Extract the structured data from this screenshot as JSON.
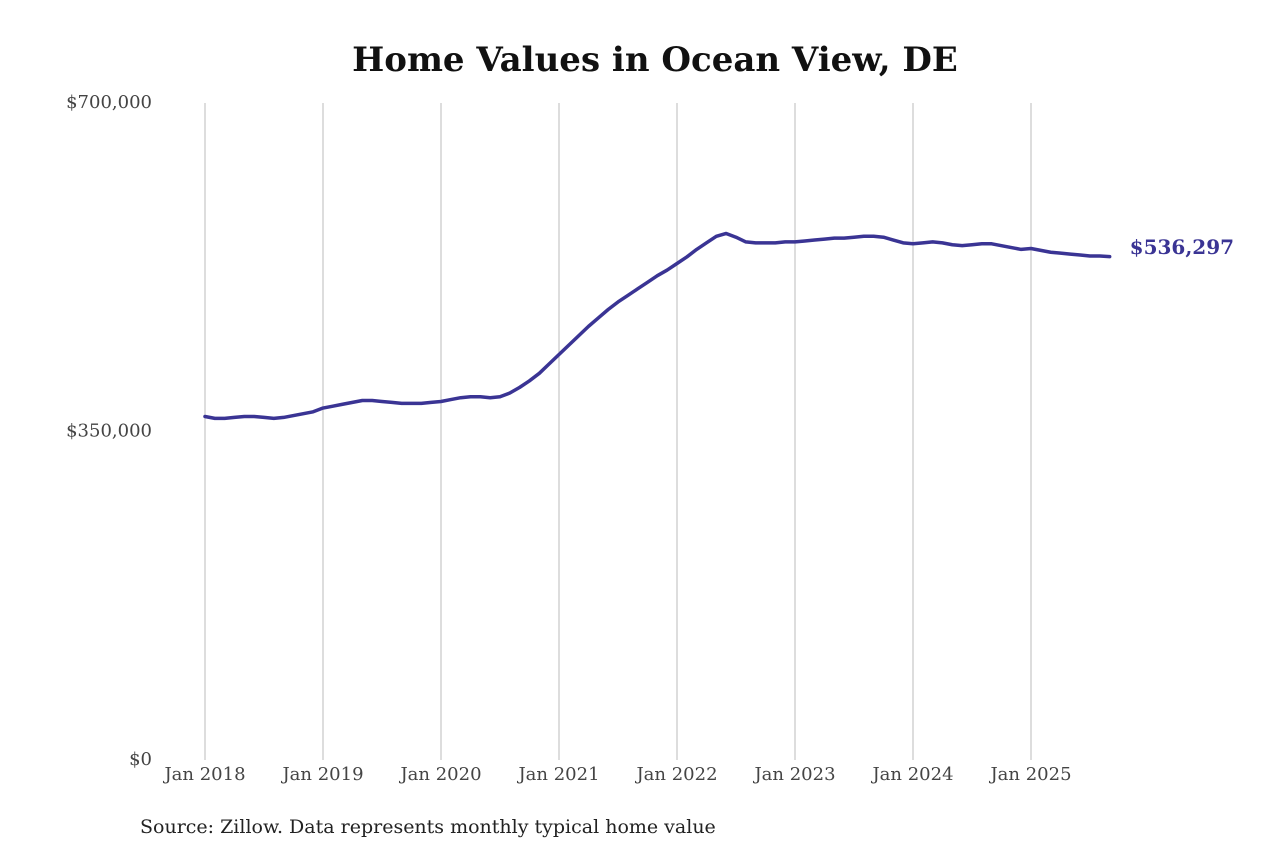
{
  "chart_data": {
    "type": "line",
    "title": "Home Values in Ocean View, DE",
    "source": "Source: Zillow. Data represents monthly typical home value",
    "categories": [
      "Jan 2018",
      null,
      null,
      null,
      null,
      null,
      null,
      null,
      null,
      null,
      null,
      null,
      "Jan 2019",
      null,
      null,
      null,
      null,
      null,
      null,
      null,
      null,
      null,
      null,
      null,
      "Jan 2020",
      null,
      null,
      null,
      null,
      null,
      null,
      null,
      null,
      null,
      null,
      null,
      "Jan 2021",
      null,
      null,
      null,
      null,
      null,
      null,
      null,
      null,
      null,
      null,
      null,
      "Jan 2022",
      null,
      null,
      null,
      null,
      null,
      null,
      null,
      null,
      null,
      null,
      null,
      "Jan 2023",
      null,
      null,
      null,
      null,
      null,
      null,
      null,
      null,
      null,
      null,
      null,
      "Jan 2024",
      null,
      null,
      null,
      null,
      null,
      null,
      null,
      null,
      null,
      null,
      null,
      "Jan 2025",
      null,
      null,
      null,
      null,
      null,
      null,
      null,
      null
    ],
    "series": [
      {
        "color": "#3a3494",
        "values": [
          366000,
          364000,
          364000,
          365000,
          366000,
          366000,
          365000,
          364000,
          365000,
          367000,
          369000,
          371000,
          375000,
          377000,
          379000,
          381000,
          383000,
          383000,
          382000,
          381000,
          380000,
          380000,
          380000,
          381000,
          382000,
          384000,
          386000,
          387000,
          387000,
          386000,
          387000,
          391000,
          397000,
          404000,
          412000,
          422000,
          432000,
          442000,
          452000,
          462000,
          471000,
          480000,
          488000,
          495000,
          502000,
          509000,
          516000,
          522000,
          529000,
          536000,
          544000,
          551000,
          558000,
          561000,
          557000,
          552000,
          551000,
          551000,
          551000,
          552000,
          552000,
          553000,
          554000,
          555000,
          556000,
          556000,
          557000,
          558000,
          558000,
          557000,
          554000,
          551000,
          550000,
          551000,
          552000,
          551000,
          549000,
          548000,
          549000,
          550000,
          550000,
          548000,
          546000,
          544000,
          545000,
          543000,
          541000,
          540000,
          539000,
          538000,
          537000,
          537000,
          536297
        ],
        "value_labels": [
          null,
          null,
          null,
          null,
          null,
          null,
          null,
          null,
          null,
          null,
          null,
          null,
          null,
          null,
          null,
          null,
          null,
          null,
          null,
          null,
          null,
          null,
          null,
          null,
          null,
          null,
          null,
          null,
          null,
          null,
          null,
          null,
          null,
          null,
          null,
          null,
          null,
          null,
          null,
          null,
          null,
          null,
          null,
          null,
          null,
          null,
          null,
          null,
          null,
          null,
          null,
          null,
          null,
          null,
          null,
          null,
          null,
          null,
          null,
          null,
          null,
          null,
          null,
          null,
          null,
          null,
          null,
          null,
          null,
          null,
          null,
          null,
          null,
          null,
          null,
          null,
          null,
          null,
          null,
          null,
          null,
          null,
          null,
          null,
          null,
          null,
          null,
          null,
          null,
          null,
          null,
          null,
          "$536,297"
        ]
      }
    ],
    "ylim": [
      0,
      700000
    ],
    "yticks": [
      {
        "value": 0,
        "label": "$0"
      },
      {
        "value": 350000,
        "label": "$350,000"
      },
      {
        "value": 700000,
        "label": "$700,000"
      }
    ],
    "grid": "x"
  }
}
